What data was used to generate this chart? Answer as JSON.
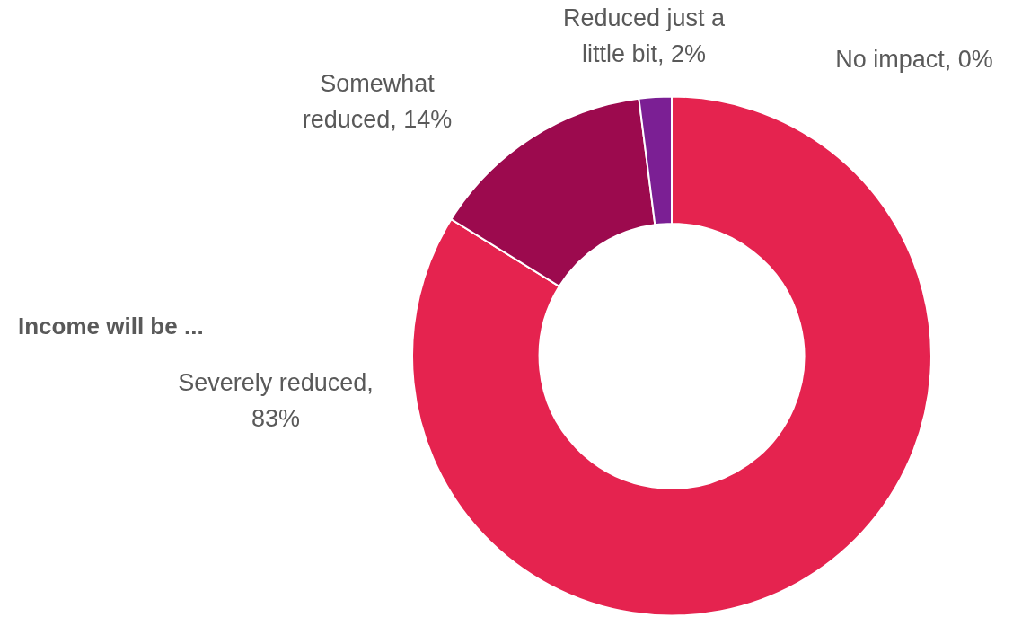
{
  "chart_data": {
    "type": "donut",
    "title": "Income will be ...",
    "categories": [
      "Severely reduced, 83%",
      "Somewhat reduced, 14%",
      "Reduced just a little bit, 2%",
      "No impact, 0%"
    ],
    "values": [
      83,
      14,
      2,
      0
    ],
    "colors": [
      "#e5234f",
      "#9c0a4e",
      "#7b1f94",
      "#9b8fe6"
    ],
    "legend": false
  }
}
